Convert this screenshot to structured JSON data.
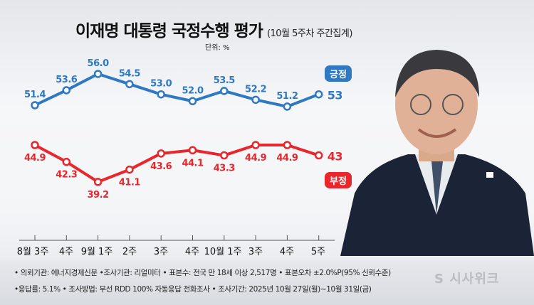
{
  "title": "이재명 대통령 국정수행 평가",
  "subtitle": "(10월 5주차 주간집계)",
  "unit": "단위: %",
  "chart_data": {
    "type": "line",
    "title": "이재명 대통령 국정수행 평가",
    "categories": [
      "8월 3주",
      "4주",
      "9월 1주",
      "2주",
      "3주",
      "4주",
      "10월 1주",
      "3주",
      "4주",
      "5주"
    ],
    "series": [
      {
        "name": "긍정",
        "color": "#2f78c2",
        "values": [
          51.4,
          53.6,
          56.0,
          54.5,
          53.0,
          52.0,
          53.5,
          52.2,
          51.2,
          53.0
        ]
      },
      {
        "name": "부정",
        "color": "#e8262c",
        "values": [
          44.9,
          42.3,
          39.2,
          41.1,
          43.6,
          44.1,
          43.3,
          44.9,
          44.9,
          43.3
        ]
      }
    ],
    "grid": false,
    "legend": "right"
  },
  "footer": {
    "line1": "• 의뢰기관: 에너지경제신문 •조사기관: 리얼미터 • 표본수: 전국 만 18세 이상 2,517명 • 표본오차 ±2.0%P(95% 신뢰수준)",
    "line2": "•응답률: 5.1% • 조사방법: 무선 RDD 100% 자동응답 전화조사 • 조사기간: 2025년 10월 27일(월)~10월 31일(금)"
  },
  "logo": "시사위크"
}
